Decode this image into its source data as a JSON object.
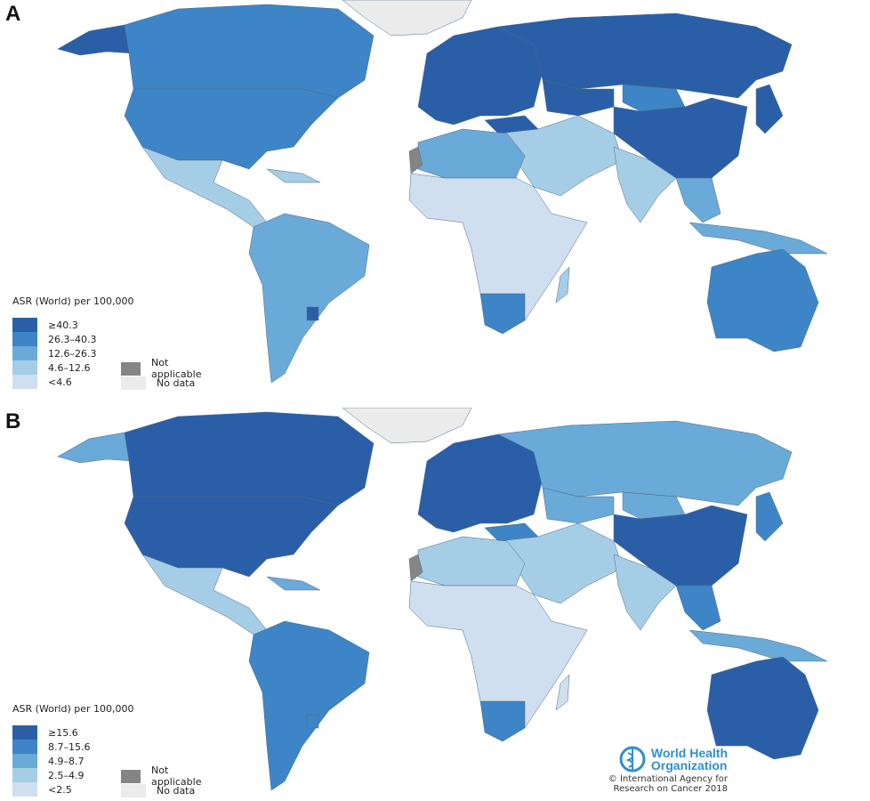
{
  "colors": {
    "class0": "#2a5fa8",
    "class1": "#3d85c6",
    "class2": "#6aaad8",
    "class3": "#a6cde6",
    "class4": "#cfdff0",
    "not_applicable": "#858585",
    "no_data": "#ebebeb"
  },
  "panels": [
    {
      "label": "A",
      "legend": {
        "title": "ASR (World) per 100,000",
        "classes": [
          "≥40.3",
          "26.3–40.3",
          "12.6–26.3",
          "4.6–12.6",
          "<4.6"
        ],
        "not_applicable": "Not applicable",
        "no_data": "No data"
      },
      "region_fills": {
        "alaska": 0,
        "canada": 1,
        "usa": 1,
        "greenland": "no_data",
        "mexico": 3,
        "caribbean": 3,
        "south_america": 2,
        "uruguay": 0,
        "europe": 0,
        "russia": 0,
        "mongolia": 1,
        "china": 0,
        "japan": 0,
        "middle_east": 3,
        "turkey": 0,
        "india": 3,
        "se_asia": 2,
        "indonesia": 2,
        "north_africa": 2,
        "sahara_west": "not_applicable",
        "africa": 4,
        "south_africa": 1,
        "madagascar": 3,
        "australia": 1,
        "kazakhstan": 0
      }
    },
    {
      "label": "B",
      "legend": {
        "title": "ASR (World) per 100,000",
        "classes": [
          "≥15.6",
          "8.7–15.6",
          "4.9–8.7",
          "2.5–4.9",
          "<2.5"
        ],
        "not_applicable": "Not applicable",
        "no_data": "No data"
      },
      "region_fills": {
        "alaska": 2,
        "canada": 0,
        "usa": 0,
        "greenland": "no_data",
        "mexico": 3,
        "caribbean": 2,
        "south_america": 1,
        "uruguay": 1,
        "europe": 0,
        "russia": 2,
        "mongolia": 2,
        "china": 0,
        "japan": 1,
        "middle_east": 3,
        "turkey": 1,
        "india": 3,
        "se_asia": 1,
        "indonesia": 2,
        "north_africa": 3,
        "sahara_west": "not_applicable",
        "africa": 4,
        "south_africa": 1,
        "madagascar": 4,
        "australia": 0,
        "kazakhstan": 2
      },
      "logo": {
        "name_line1": "World Health",
        "name_line2": "Organization",
        "credit_line1": "© International Agency for",
        "credit_line2": "Research on Cancer 2018"
      }
    }
  ]
}
